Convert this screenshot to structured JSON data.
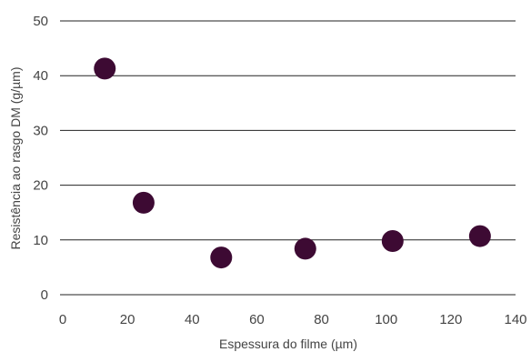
{
  "chart_data": {
    "type": "scatter",
    "title": "",
    "xlabel": "Espessura do filme (µm)",
    "ylabel": "Resistência ao rasgo DM (g/µm)",
    "xlim": [
      0,
      140
    ],
    "ylim": [
      0,
      50
    ],
    "x_ticks": [
      0,
      20,
      40,
      60,
      80,
      100,
      120,
      140
    ],
    "y_ticks": [
      0,
      10,
      20,
      30,
      40,
      50
    ],
    "grid": "horizontal",
    "series": [
      {
        "color": "#3d0a33",
        "points": [
          {
            "x": 13,
            "y": 41.3
          },
          {
            "x": 25,
            "y": 16.8
          },
          {
            "x": 49,
            "y": 6.8
          },
          {
            "x": 75,
            "y": 8.4
          },
          {
            "x": 102,
            "y": 9.8
          },
          {
            "x": 129,
            "y": 10.7
          }
        ]
      }
    ]
  }
}
